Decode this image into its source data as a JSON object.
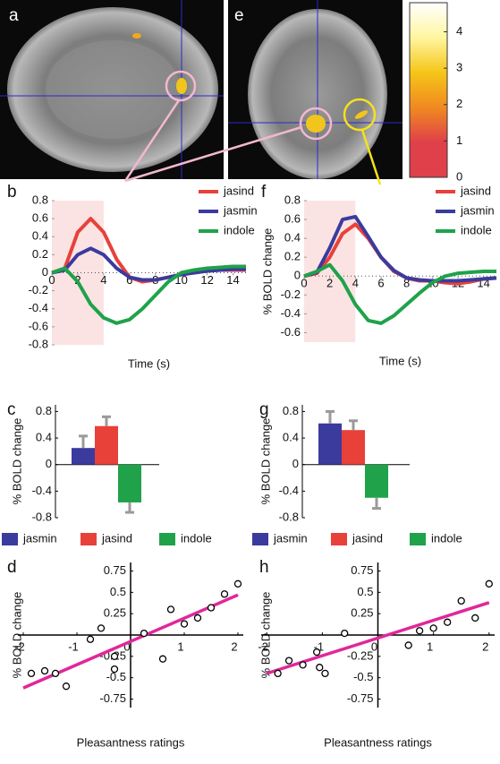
{
  "image_labels": [
    "a",
    "e"
  ],
  "chart_data": [
    {
      "type": "colorbar",
      "ylim": [
        0,
        4.8
      ],
      "yticks": [
        0,
        1,
        2,
        3,
        4
      ],
      "colors": [
        "#e0404a",
        "#e0404a",
        "#f08a20",
        "#f5c518",
        "#fff6a0",
        "#ffffff"
      ]
    },
    {
      "type": "line",
      "panel": "b",
      "xlabel": "Time (s)",
      "x": [
        0,
        1,
        2,
        3,
        4,
        5,
        6,
        7,
        8,
        9,
        10,
        11,
        12,
        13,
        14,
        15
      ],
      "xlim": [
        0,
        15
      ],
      "xticks": [
        0,
        2,
        4,
        6,
        8,
        10,
        12,
        14
      ],
      "ylim": [
        -0.8,
        0.8
      ],
      "yticks": [
        0.8,
        0.6,
        0.4,
        0.2,
        0,
        -0.2,
        -0.4,
        -0.6,
        -0.8
      ],
      "highlight_x": [
        0,
        4
      ],
      "series": [
        {
          "name": "jasind",
          "color": "#e8413a",
          "values": [
            0,
            0.05,
            0.45,
            0.6,
            0.45,
            0.15,
            -0.05,
            -0.1,
            -0.08,
            -0.05,
            -0.02,
            0,
            0.02,
            0.03,
            0.03,
            0.03
          ]
        },
        {
          "name": "jasmin",
          "color": "#3b3b9e",
          "values": [
            0,
            0.03,
            0.2,
            0.27,
            0.2,
            0.05,
            -0.05,
            -0.08,
            -0.08,
            -0.05,
            -0.02,
            0,
            0.02,
            0.03,
            0.04,
            0.04
          ]
        },
        {
          "name": "indole",
          "color": "#1fa24a",
          "values": [
            0,
            0.05,
            -0.1,
            -0.35,
            -0.5,
            -0.56,
            -0.52,
            -0.4,
            -0.25,
            -0.1,
            0,
            0.03,
            0.05,
            0.06,
            0.07,
            0.07
          ]
        }
      ]
    },
    {
      "type": "line",
      "panel": "f",
      "xlabel": "Time (s)",
      "ylabel": "% BOLD change",
      "x": [
        0,
        1,
        2,
        3,
        4,
        5,
        6,
        7,
        8,
        9,
        10,
        11,
        12,
        13,
        14,
        15
      ],
      "xlim": [
        0,
        15
      ],
      "xticks": [
        0,
        2,
        4,
        6,
        8,
        10,
        12,
        14
      ],
      "ylim": [
        -0.7,
        0.8
      ],
      "yticks": [
        0.8,
        0.6,
        0.4,
        0.2,
        0,
        -0.2,
        -0.4,
        -0.6
      ],
      "highlight_x": [
        0,
        4
      ],
      "series": [
        {
          "name": "jasind",
          "color": "#e8413a",
          "values": [
            0,
            0.03,
            0.2,
            0.45,
            0.55,
            0.4,
            0.2,
            0.05,
            -0.02,
            -0.05,
            -0.05,
            -0.07,
            -0.08,
            -0.06,
            -0.03,
            -0.02
          ]
        },
        {
          "name": "jasmin",
          "color": "#3b3b9e",
          "values": [
            0,
            0.04,
            0.3,
            0.6,
            0.63,
            0.42,
            0.2,
            0.06,
            -0.02,
            -0.04,
            -0.05,
            -0.05,
            -0.05,
            -0.04,
            -0.03,
            -0.02
          ]
        },
        {
          "name": "indole",
          "color": "#1fa24a",
          "values": [
            0,
            0.05,
            0.12,
            -0.05,
            -0.3,
            -0.47,
            -0.5,
            -0.42,
            -0.3,
            -0.18,
            -0.07,
            0,
            0.03,
            0.04,
            0.05,
            0.05
          ]
        }
      ]
    },
    {
      "type": "bar",
      "panel": "c",
      "ylabel": "% BOLD change",
      "categories": [
        "jasmin",
        "jasind",
        "indole"
      ],
      "colors": [
        "#3b3b9e",
        "#e8413a",
        "#1fa24a"
      ],
      "values": [
        0.25,
        0.58,
        -0.57
      ],
      "errors": [
        0.18,
        0.14,
        0.15
      ],
      "ylim": [
        -0.8,
        0.9
      ],
      "yticks": [
        0.8,
        0.4,
        0,
        -0.4,
        -0.8
      ]
    },
    {
      "type": "bar",
      "panel": "g",
      "ylabel": "% BOLD change",
      "categories": [
        "jasmin",
        "jasind",
        "indole"
      ],
      "colors": [
        "#3b3b9e",
        "#e8413a",
        "#1fa24a"
      ],
      "values": [
        0.62,
        0.52,
        -0.5
      ],
      "errors": [
        0.18,
        0.14,
        0.16
      ],
      "ylim": [
        -0.8,
        0.9
      ],
      "yticks": [
        0.8,
        0.4,
        0,
        -0.4,
        -0.8
      ]
    },
    {
      "type": "scatter",
      "panel": "d",
      "xlabel": "Pleasantness ratings",
      "ylabel": "% BOLD change",
      "xlim": [
        -2.1,
        2.1
      ],
      "xticks": [
        -2,
        -1,
        0,
        1,
        2
      ],
      "ylim": [
        -0.85,
        0.85
      ],
      "yticks": [
        0.75,
        0.5,
        0.25,
        -0.25,
        -0.5,
        -0.75
      ],
      "x": [
        -1.85,
        -1.6,
        -1.4,
        -1.2,
        -0.75,
        -0.55,
        -0.3,
        -0.3,
        0.25,
        0.6,
        0.75,
        1.0,
        1.25,
        1.5,
        1.75,
        2.0
      ],
      "y": [
        -0.45,
        -0.42,
        -0.45,
        -0.6,
        -0.05,
        0.08,
        -0.25,
        -0.4,
        0.02,
        -0.28,
        0.3,
        0.13,
        0.2,
        0.32,
        0.48,
        0.6
      ],
      "fit_line": {
        "x": [
          -2,
          2
        ],
        "y": [
          -0.62,
          0.47
        ],
        "color": "#e0279a"
      }
    },
    {
      "type": "scatter",
      "panel": "h",
      "xlabel": "Pleasantness ratings",
      "ylabel": "% BOLD change",
      "xlim": [
        -2.1,
        2.1
      ],
      "xticks": [
        -2,
        -1,
        0,
        1,
        2
      ],
      "ylim": [
        -0.85,
        0.85
      ],
      "yticks": [
        0.75,
        0.5,
        0.25,
        -0.25,
        -0.5,
        -0.75
      ],
      "x": [
        -1.8,
        -1.6,
        -1.35,
        -1.1,
        -1.05,
        -0.95,
        -0.6,
        0.55,
        0.75,
        1.0,
        1.25,
        1.5,
        1.75,
        2.0
      ],
      "y": [
        -0.45,
        -0.3,
        -0.35,
        -0.2,
        -0.38,
        -0.45,
        0.02,
        -0.12,
        0.05,
        0.08,
        0.15,
        0.4,
        0.2,
        0.6
      ],
      "fit_line": {
        "x": [
          -2,
          2
        ],
        "y": [
          -0.45,
          0.38
        ],
        "color": "#e0279a"
      }
    }
  ]
}
